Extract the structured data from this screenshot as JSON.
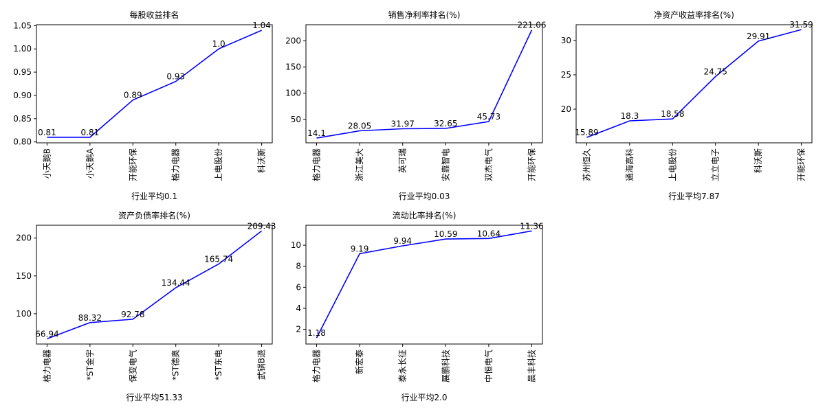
{
  "chart_data": [
    {
      "type": "line",
      "title": "每股收益排名",
      "xlabel": "行业平均0.1",
      "categories": [
        "小天鹅B",
        "小天鹅A",
        "开能环保",
        "格力电器",
        "上电股份",
        "科沃斯"
      ],
      "values": [
        0.81,
        0.81,
        0.89,
        0.93,
        1.0,
        1.04
      ],
      "value_labels": [
        "0.81",
        "0.81",
        "0.89",
        "0.93",
        "1.0",
        "1.04"
      ],
      "yticks": [
        "0.80",
        "0.85",
        "0.90",
        "0.95",
        "1.00",
        "1.05"
      ],
      "ylim": [
        0.798,
        1.052
      ],
      "line_color": "#0000ff",
      "grid": false
    },
    {
      "type": "line",
      "title": "销售净利率排名(%)",
      "xlabel": "行业平均0.03",
      "categories": [
        "格力电器",
        "浙江美大",
        "英可瑞",
        "安靠智电",
        "双杰电气",
        "开能环保"
      ],
      "values": [
        14.1,
        28.05,
        31.97,
        32.65,
        45.73,
        221.06
      ],
      "value_labels": [
        "14.1",
        "28.05",
        "31.97",
        "32.65",
        "45.73",
        "221.06"
      ],
      "yticks": [
        "50",
        "100",
        "150",
        "200"
      ],
      "ylim": [
        5,
        231
      ],
      "line_color": "#0000ff",
      "grid": false
    },
    {
      "type": "line",
      "title": "净资产收益率排名(%)",
      "xlabel": "行业平均7.87",
      "categories": [
        "苏州恒久",
        "通海高科",
        "上电股份",
        "立立电子",
        "科沃斯",
        "开能环保"
      ],
      "values": [
        15.89,
        18.3,
        18.58,
        24.75,
        29.91,
        31.59
      ],
      "value_labels": [
        "15.89",
        "18.3",
        "18.58",
        "24.75",
        "29.91",
        "31.59"
      ],
      "yticks": [
        "20",
        "25",
        "30"
      ],
      "ylim": [
        15.1,
        32.3
      ],
      "line_color": "#0000ff",
      "grid": false
    },
    {
      "type": "line",
      "title": "资产负债率排名(%)",
      "xlabel": "行业平均51.33",
      "categories": [
        "格力电器",
        "*ST金宇",
        "保变电气",
        "*ST德奥",
        "*ST东电",
        "武锅B退"
      ],
      "values": [
        66.94,
        88.32,
        92.78,
        134.44,
        165.74,
        209.43
      ],
      "value_labels": [
        "66.94",
        "88.32",
        "92.78",
        "134.44",
        "165.74",
        "209.43"
      ],
      "yticks": [
        "100",
        "150",
        "200"
      ],
      "ylim": [
        60,
        217
      ],
      "line_color": "#0000ff",
      "grid": false
    },
    {
      "type": "line",
      "title": "流动比率排名(%)",
      "xlabel": "行业平均2.0",
      "categories": [
        "格力电器",
        "新宏泰",
        "泰永长征",
        "展鹏科技",
        "中恒电气",
        "晨丰科技"
      ],
      "values": [
        1.18,
        9.19,
        9.94,
        10.59,
        10.64,
        11.36
      ],
      "value_labels": [
        "1.18",
        "9.19",
        "9.94",
        "10.59",
        "10.64",
        "11.36"
      ],
      "yticks": [
        "2",
        "4",
        "6",
        "8",
        "10"
      ],
      "ylim": [
        0.6,
        11.9
      ],
      "line_color": "#0000ff",
      "grid": false
    }
  ]
}
